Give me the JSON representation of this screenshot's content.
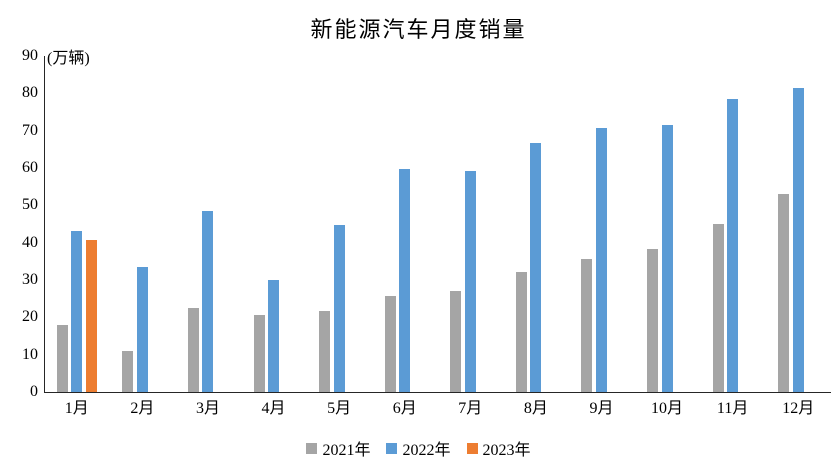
{
  "chart_data": {
    "type": "bar",
    "title": "新能源汽车月度销量",
    "ylabel": "(万辆)",
    "xlabel": "",
    "ylim": [
      0,
      90
    ],
    "y_tick_step": 10,
    "grid": false,
    "legend_position": "bottom",
    "axis_color": "#262626",
    "categories": [
      "1月",
      "2月",
      "3月",
      "4月",
      "5月",
      "6月",
      "7月",
      "8月",
      "9月",
      "10月",
      "11月",
      "12月"
    ],
    "series": [
      {
        "name": "2021年",
        "color": "#A5A5A5",
        "values": [
          17.9,
          11.0,
          22.6,
          20.6,
          21.7,
          25.6,
          27.1,
          32.1,
          35.7,
          38.3,
          45.0,
          53.1
        ]
      },
      {
        "name": "2022年",
        "color": "#5B9BD5",
        "values": [
          43.1,
          33.4,
          48.4,
          29.9,
          44.7,
          59.6,
          59.3,
          66.6,
          70.8,
          71.4,
          78.6,
          81.4
        ]
      },
      {
        "name": "2023年",
        "color": "#ED7D31",
        "values": [
          40.8,
          null,
          null,
          null,
          null,
          null,
          null,
          null,
          null,
          null,
          null,
          null
        ]
      }
    ]
  }
}
